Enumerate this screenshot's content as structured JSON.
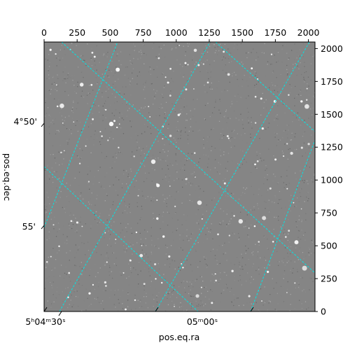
{
  "chart_data": {
    "type": "image",
    "colormap": "grayscale",
    "grid_color": "#00e5e5",
    "pixel_axes": {
      "bottom_ticks": [
        0,
        250,
        500,
        750,
        1000,
        1250,
        1500,
        1750,
        2000
      ],
      "right_ticks": [
        0,
        250,
        500,
        750,
        1000,
        1250,
        1500,
        1750,
        2000
      ],
      "xlim": [
        0,
        2050
      ],
      "ylim": [
        0,
        2050
      ]
    },
    "world_axes": {
      "xlabel": "pos.eq.ra",
      "ylabel": "pos.eq.dec",
      "ra_ticks": [
        "5ʰ04ᵐ30ˢ",
        "05ᵐ00ˢ"
      ],
      "dec_ticks": [
        "4°50'",
        "55'"
      ]
    }
  }
}
